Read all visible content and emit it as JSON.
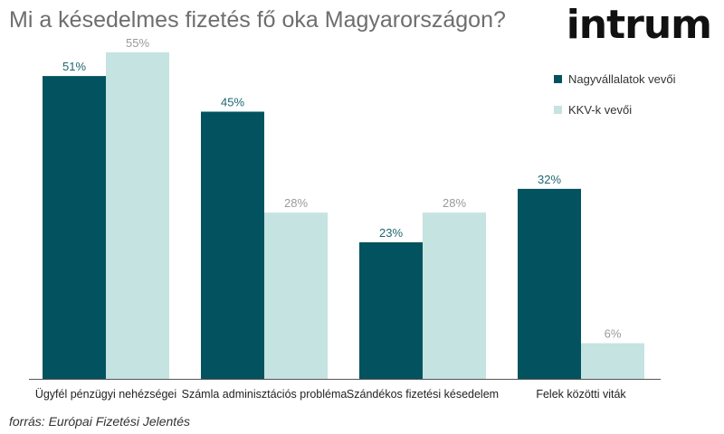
{
  "title": "Mi a késedelmes fizetés fő oka Magyarországon?",
  "logo": "intrum",
  "source": "forrás: Európai Fizetési Jelentés",
  "colors": {
    "series1": "#02535f",
    "series2": "#c4e3e1",
    "label1": "#1e6770",
    "label2": "#9a9a9a",
    "axis": "#555555"
  },
  "chart_data": {
    "type": "bar",
    "categories": [
      "Ügyfél pénzügyi nehézségei",
      "Számla adminisztációs probléma",
      "Szándékos fizetési késedelem",
      "Felek közötti viták"
    ],
    "series": [
      {
        "name": "Nagyvállalatok vevői",
        "values": [
          51,
          45,
          23,
          32
        ],
        "labels": [
          "51%",
          "45%",
          "23%",
          "32%"
        ]
      },
      {
        "name": "KKV-k vevői",
        "values": [
          55,
          28,
          28,
          6
        ],
        "labels": [
          "55%",
          "28%",
          "28%",
          "6%"
        ]
      }
    ],
    "ylim": [
      0,
      60
    ],
    "grid": false,
    "legend_position": "top-right"
  }
}
